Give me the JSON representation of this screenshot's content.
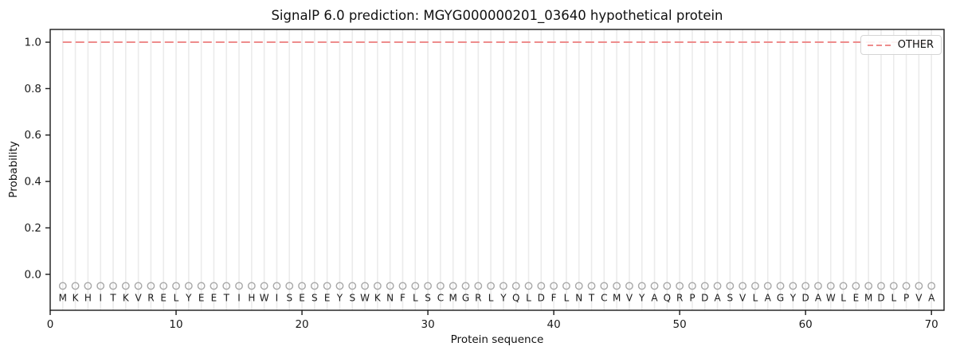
{
  "figure": {
    "title": "SignalP 6.0 prediction: MGYG000000201_03640 hypothetical protein",
    "xlabel": "Protein sequence",
    "ylabel": "Probability"
  },
  "legend": {
    "position": "upper right",
    "items": [
      {
        "label": "OTHER",
        "color": "#ee8c8c",
        "line_style": "dashed"
      }
    ]
  },
  "chart_data": {
    "type": "line",
    "title": "SignalP 6.0 prediction: MGYG000000201_03640 hypothetical protein",
    "xlabel": "Protein sequence",
    "ylabel": "Probability",
    "xlim": [
      0,
      71
    ],
    "ylim": [
      -0.155,
      1.055
    ],
    "x_ticks": [
      0,
      10,
      20,
      30,
      40,
      50,
      60,
      70
    ],
    "y_ticks": [
      0.0,
      0.2,
      0.4,
      0.6,
      0.8,
      1.0
    ],
    "grid": "vertical line at every residue position",
    "legend_position": "upper right",
    "n_residues": 70,
    "sequence": "MKHITKVRELYEETIHWISESEYSWKNFLSCMGRLYQLDFLNTCMVYAQRPDASVLAGYDAWLEMDLPVA",
    "series": [
      {
        "name": "OTHER",
        "color": "#ee8c8c",
        "line_style": "dashed",
        "x_start": 1,
        "values": [
          1,
          1,
          1,
          1,
          1,
          1,
          1,
          1,
          1,
          1,
          1,
          1,
          1,
          1,
          1,
          1,
          1,
          1,
          1,
          1,
          1,
          1,
          1,
          1,
          1,
          1,
          1,
          1,
          1,
          1,
          1,
          1,
          1,
          1,
          1,
          1,
          1,
          1,
          1,
          1,
          1,
          1,
          1,
          1,
          1,
          1,
          1,
          1,
          1,
          1,
          1,
          1,
          1,
          1,
          1,
          1,
          1,
          1,
          1,
          1,
          1,
          1,
          1,
          1,
          1,
          1,
          1,
          1,
          1,
          1
        ]
      }
    ],
    "residue_markers": {
      "shape": "open-circle",
      "y_value": -0.05,
      "color": "#a8a8a8"
    },
    "residue_letters_y_value": -0.1,
    "colors": {
      "grid": "#ebebeb",
      "axis": "#1a1a1a",
      "marker": "#a8a8a8",
      "letters": "#262626",
      "other_line": "#ee8c8c",
      "background": "#ffffff"
    }
  }
}
